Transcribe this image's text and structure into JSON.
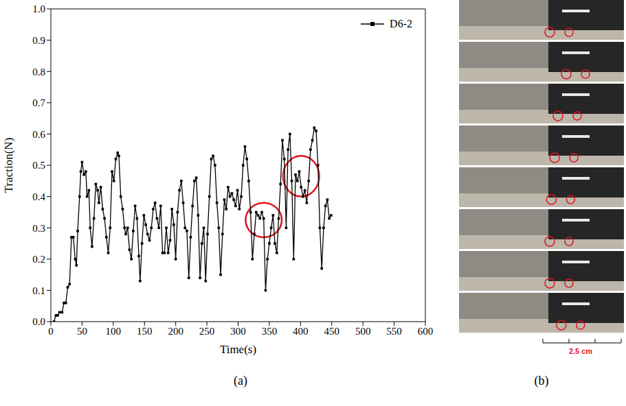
{
  "chart_data": {
    "type": "line",
    "x_label": "Time(s)",
    "y_label": "Traction(N)",
    "xlim": [
      0,
      600
    ],
    "xticks": [
      0,
      50,
      100,
      150,
      200,
      250,
      300,
      350,
      400,
      450,
      500,
      550,
      600
    ],
    "ylim": [
      0,
      1
    ],
    "yticks": [
      {
        "value": 0,
        "label": "0.0"
      },
      0.1,
      0.2,
      0.3,
      0.4,
      0.5,
      0.6,
      0.7,
      0.8,
      0.9,
      {
        "value": 1,
        "label": "1.0"
      }
    ],
    "grid": false,
    "legend": "upper right",
    "highlights": [
      {
        "x": [
          312,
          370
        ],
        "y": [
          0.27,
          0.38
        ]
      },
      {
        "x": [
          372,
          430
        ],
        "y": [
          0.4,
          0.53
        ]
      }
    ],
    "series": [
      {
        "name": "D6-2",
        "color": "#000000",
        "marker": "square",
        "line_style": "solid",
        "x": [
          5,
          8,
          11,
          14,
          18,
          21,
          24,
          27,
          30,
          33,
          36,
          39,
          41,
          43,
          46,
          48,
          50,
          53,
          56,
          58,
          61,
          63,
          66,
          69,
          72,
          75,
          77,
          80,
          83,
          86,
          89,
          92,
          95,
          98,
          101,
          104,
          107,
          109,
          112,
          115,
          118,
          120,
          123,
          126,
          129,
          132,
          135,
          138,
          141,
          143,
          146,
          149,
          152,
          155,
          158,
          161,
          164,
          167,
          170,
          173,
          176,
          179,
          182,
          185,
          188,
          191,
          194,
          197,
          200,
          203,
          206,
          209,
          212,
          215,
          218,
          221,
          224,
          227,
          230,
          233,
          236,
          239,
          242,
          245,
          248,
          251,
          254,
          257,
          260,
          263,
          266,
          269,
          272,
          275,
          278,
          281,
          284,
          287,
          290,
          293,
          296,
          299,
          302,
          305,
          308,
          311,
          314,
          317,
          320,
          323,
          326,
          329,
          332,
          335,
          338,
          341,
          344,
          347,
          350,
          353,
          356,
          359,
          362,
          365,
          368,
          371,
          374,
          377,
          380,
          383,
          386,
          389,
          392,
          395,
          398,
          401,
          404,
          407,
          410,
          413,
          416,
          419,
          422,
          425,
          428,
          431,
          434,
          437,
          440,
          443,
          446,
          449
        ],
        "values": [
          0.0,
          0.02,
          0.02,
          0.03,
          0.03,
          0.06,
          0.06,
          0.11,
          0.12,
          0.27,
          0.27,
          0.2,
          0.18,
          0.29,
          0.4,
          0.48,
          0.51,
          0.47,
          0.48,
          0.4,
          0.42,
          0.3,
          0.24,
          0.33,
          0.44,
          0.42,
          0.38,
          0.43,
          0.36,
          0.33,
          0.27,
          0.22,
          0.3,
          0.48,
          0.45,
          0.52,
          0.54,
          0.53,
          0.4,
          0.36,
          0.3,
          0.28,
          0.3,
          0.23,
          0.2,
          0.29,
          0.37,
          0.33,
          0.21,
          0.13,
          0.25,
          0.34,
          0.31,
          0.28,
          0.26,
          0.3,
          0.36,
          0.38,
          0.33,
          0.3,
          0.37,
          0.22,
          0.22,
          0.3,
          0.22,
          0.26,
          0.36,
          0.31,
          0.2,
          0.35,
          0.42,
          0.45,
          0.38,
          0.3,
          0.29,
          0.14,
          0.27,
          0.37,
          0.45,
          0.46,
          0.34,
          0.14,
          0.25,
          0.3,
          0.13,
          0.28,
          0.4,
          0.52,
          0.53,
          0.5,
          0.38,
          0.3,
          0.15,
          0.28,
          0.39,
          0.36,
          0.43,
          0.4,
          0.41,
          0.39,
          0.37,
          0.42,
          0.36,
          0.4,
          0.5,
          0.56,
          0.52,
          0.45,
          0.35,
          0.2,
          0.28,
          0.35,
          0.34,
          0.33,
          0.35,
          0.33,
          0.1,
          0.2,
          0.25,
          0.3,
          0.34,
          0.25,
          0.22,
          0.33,
          0.44,
          0.58,
          0.52,
          0.3,
          0.55,
          0.6,
          0.45,
          0.2,
          0.47,
          0.45,
          0.48,
          0.43,
          0.4,
          0.42,
          0.38,
          0.45,
          0.55,
          0.58,
          0.62,
          0.61,
          0.5,
          0.3,
          0.17,
          0.3,
          0.37,
          0.39,
          0.33,
          0.34
        ]
      }
    ]
  },
  "panel_labels": [
    "(a)",
    "(b)"
  ],
  "scale_bar": "2.5 cm"
}
